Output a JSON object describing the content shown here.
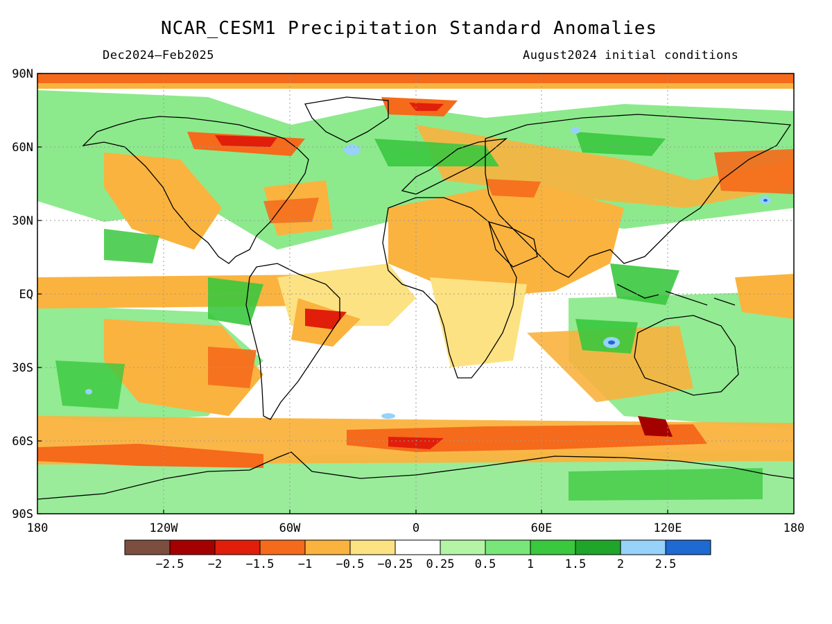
{
  "title": "NCAR_CESM1 Precipitation Standard Anomalies",
  "subtitle_left": "Dec2024–Feb2025",
  "subtitle_right": "August2024 initial conditions",
  "axes": {
    "y_ticks": [
      "90N",
      "60N",
      "30N",
      "EQ",
      "30S",
      "60S",
      "90S"
    ],
    "x_ticks": [
      "180",
      "120W",
      "60W",
      "0",
      "60E",
      "120E",
      "180"
    ]
  },
  "colorbar": {
    "colors": [
      "#7b4e3f",
      "#a50000",
      "#e01e0a",
      "#f56a1b",
      "#fab33e",
      "#fde283",
      "#ffffff",
      "#b4f5a5",
      "#78e678",
      "#3ac83e",
      "#1fa52a",
      "#96d2fa",
      "#1e69d2"
    ],
    "labels": [
      "−2.5",
      "−2",
      "−1.5",
      "−1",
      "−0.5",
      "−0.25",
      "0.25",
      "0.5",
      "1",
      "1.5",
      "2",
      "2.5"
    ]
  },
  "map": {
    "projection": "lat-lon",
    "lon_range": [
      -180,
      180
    ],
    "lat_range": [
      -90,
      90
    ]
  }
}
